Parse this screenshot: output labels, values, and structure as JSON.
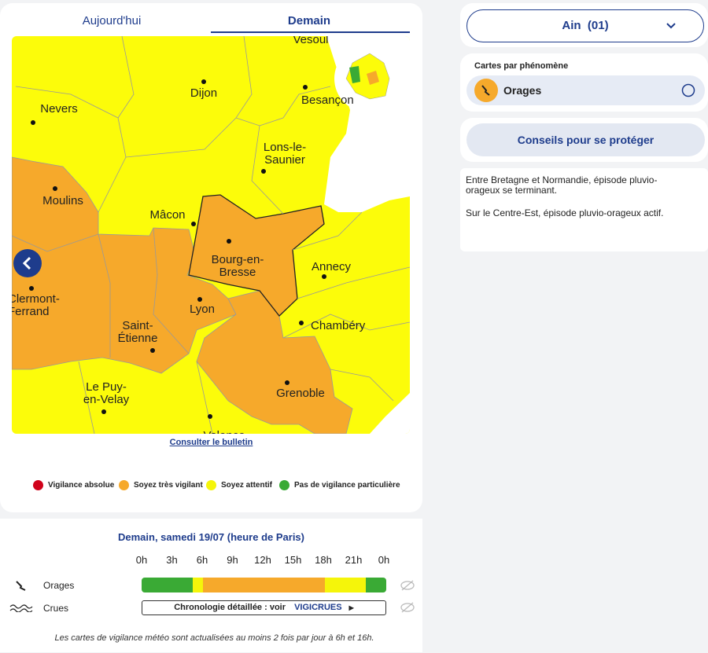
{
  "tabs": [
    "Aujourd'hui",
    "Demain"
  ],
  "map": {
    "cities": [
      {
        "lines": [
          "Vesoul"
        ]
      },
      {
        "lines": [
          "Nevers"
        ]
      },
      {
        "lines": [
          "Dijon"
        ]
      },
      {
        "lines": [
          "Besançon"
        ]
      },
      {
        "lines": [
          "Lons-le-",
          "Saunier"
        ]
      },
      {
        "lines": [
          "Moulins"
        ]
      },
      {
        "lines": [
          "Mâcon"
        ]
      },
      {
        "lines": [
          "Bourg-en-",
          "Bresse"
        ]
      },
      {
        "lines": [
          "Annecy"
        ]
      },
      {
        "lines": [
          "Clermont-",
          "Ferrand"
        ]
      },
      {
        "lines": [
          "Lyon"
        ]
      },
      {
        "lines": [
          "Chambéry"
        ]
      },
      {
        "lines": [
          "Saint-",
          "Étienne"
        ]
      },
      {
        "lines": [
          "Grenoble"
        ]
      },
      {
        "lines": [
          "Le Puy-",
          "en-Velay"
        ]
      },
      {
        "lines": [
          "Valence"
        ]
      }
    ],
    "link": "Consulter le bulletin"
  },
  "legend": [
    "Vigilance absolue",
    "Soyez très vigilant",
    "Soyez attentif",
    "Pas de vigilance particulière"
  ],
  "department": "Ain  (01)",
  "phenomena": {
    "title": "Cartes par phénomène",
    "item": "Orages"
  },
  "advice_button": "Conseils pour se protéger",
  "messages": [
    "Entre Bretagne et Normandie, épisode pluvio-orageux se terminant.",
    "Sur le Centre-Est, épisode pluvio-orageux actif."
  ],
  "timeline": {
    "title": "Demain, samedi 19/07 (heure de Paris)",
    "hours": [
      "0h",
      "3h",
      "6h",
      "9h",
      "12h",
      "15h",
      "18h",
      "21h",
      "0h"
    ],
    "rows": [
      "Orages",
      "Crues"
    ],
    "crues_button": "Chronologie détaillée : voir",
    "crues_brand": "VIGICRUES"
  },
  "footnote": "Les cartes de vigilance météo sont actualisées au moins 2 fois par jour à 6h et 16h."
}
